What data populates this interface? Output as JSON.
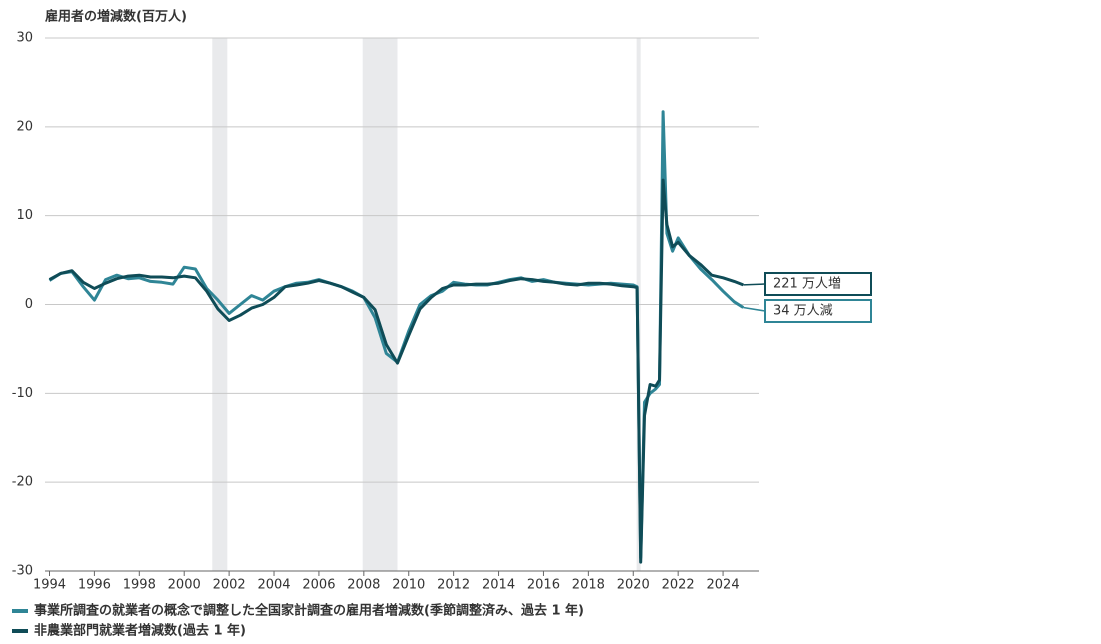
{
  "chart_data": {
    "type": "line",
    "title": "雇用者の増減数(百万人)",
    "x": [
      1994.0,
      1994.5,
      1995.0,
      1995.5,
      1996.0,
      1996.5,
      1997.0,
      1997.5,
      1998.0,
      1998.5,
      1999.0,
      1999.5,
      2000.0,
      2000.5,
      2001.0,
      2001.5,
      2002.0,
      2002.5,
      2003.0,
      2003.5,
      2004.0,
      2004.5,
      2005.0,
      2005.5,
      2006.0,
      2006.5,
      2007.0,
      2007.5,
      2008.0,
      2008.5,
      2009.0,
      2009.5,
      2010.0,
      2010.5,
      2011.0,
      2011.5,
      2012.0,
      2012.5,
      2013.0,
      2013.5,
      2014.0,
      2014.5,
      2015.0,
      2015.5,
      2016.0,
      2016.5,
      2017.0,
      2017.5,
      2018.0,
      2018.5,
      2019.0,
      2019.5,
      2020.0,
      2020.17,
      2020.33,
      2020.5,
      2020.75,
      2021.0,
      2021.17,
      2021.33,
      2021.5,
      2021.75,
      2022.0,
      2022.5,
      2023.0,
      2023.5,
      2024.0,
      2024.5,
      2024.9
    ],
    "series": [
      {
        "name": "事業所調査の就業者の概念で調整した全国家計調査の雇用者増減数(季節調整済み、過去 1 年)",
        "color": "#2f8596",
        "values": [
          2.7,
          3.5,
          3.7,
          2.0,
          0.5,
          2.8,
          3.3,
          2.9,
          3.0,
          2.6,
          2.5,
          2.3,
          4.2,
          4.0,
          1.8,
          0.5,
          -1.0,
          0.0,
          1.0,
          0.5,
          1.5,
          2.0,
          2.4,
          2.5,
          2.8,
          2.4,
          2.0,
          1.5,
          0.8,
          -1.5,
          -5.5,
          -6.5,
          -3.0,
          0.0,
          1.0,
          1.5,
          2.5,
          2.3,
          2.2,
          2.2,
          2.5,
          2.8,
          3.0,
          2.6,
          2.8,
          2.5,
          2.4,
          2.3,
          2.2,
          2.3,
          2.4,
          2.3,
          2.2,
          2.0,
          -28.5,
          -11.0,
          -10.0,
          -9.5,
          -9.0,
          21.7,
          8.0,
          6.0,
          7.5,
          5.5,
          4.0,
          2.8,
          1.5,
          0.3,
          -0.34
        ]
      },
      {
        "name": "非農業部門就業者増減数(過去 1 年)",
        "color": "#0f4c57",
        "values": [
          2.8,
          3.5,
          3.8,
          2.5,
          1.8,
          2.4,
          2.9,
          3.2,
          3.3,
          3.1,
          3.1,
          3.0,
          3.2,
          3.0,
          1.5,
          -0.5,
          -1.8,
          -1.2,
          -0.4,
          0.0,
          0.8,
          2.0,
          2.2,
          2.4,
          2.7,
          2.4,
          2.0,
          1.4,
          0.8,
          -0.6,
          -4.5,
          -6.6,
          -3.5,
          -0.5,
          0.8,
          1.8,
          2.2,
          2.2,
          2.3,
          2.3,
          2.4,
          2.7,
          2.9,
          2.8,
          2.6,
          2.5,
          2.3,
          2.2,
          2.4,
          2.4,
          2.3,
          2.1,
          2.0,
          1.9,
          -29.0,
          -12.5,
          -9.0,
          -9.2,
          -8.5,
          14.0,
          9.0,
          6.5,
          7.0,
          5.5,
          4.5,
          3.3,
          3.0,
          2.6,
          2.21
        ]
      }
    ],
    "annotations": [
      {
        "text": "221 万人増",
        "series": 1
      },
      {
        "text": "34 万人減",
        "series": 0
      }
    ],
    "shaded_ranges": [
      [
        2001.25,
        2001.92
      ],
      [
        2007.95,
        2009.5
      ],
      [
        2020.15,
        2020.33
      ]
    ],
    "xlim": [
      1993.8,
      2025.6
    ],
    "xticks": [
      1994,
      1996,
      1998,
      2000,
      2002,
      2004,
      2006,
      2008,
      2010,
      2012,
      2014,
      2016,
      2018,
      2020,
      2022,
      2024
    ],
    "ylim": [
      -30,
      30
    ],
    "yticks": [
      -30,
      -20,
      -10,
      0,
      10,
      20,
      30
    ],
    "grid": true
  }
}
